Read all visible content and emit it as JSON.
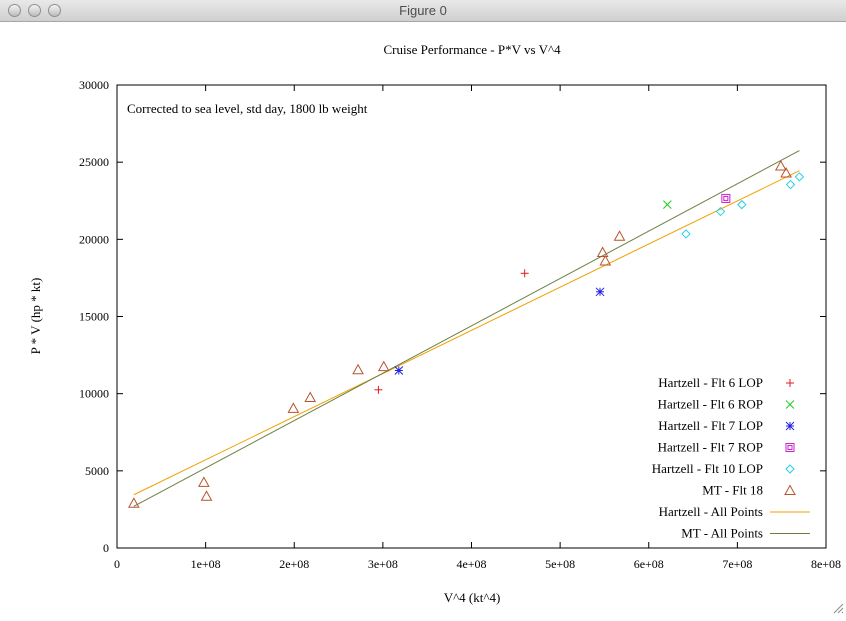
{
  "window": {
    "title": "Figure 0",
    "buttons": [
      "close",
      "minimize",
      "zoom"
    ]
  },
  "chart_data": {
    "type": "scatter",
    "title": "Cruise Performance - P*V vs V^4",
    "annotation": "Corrected to sea level, std day, 1800 lb weight",
    "xlabel": "V^4 (kt^4)",
    "ylabel": "P * V (hp * kt)",
    "xlim": [
      0,
      800000000
    ],
    "ylim": [
      0,
      30000
    ],
    "xticks": [
      {
        "value": 0,
        "label": "0"
      },
      {
        "value": 100000000,
        "label": "1e+08"
      },
      {
        "value": 200000000,
        "label": "2e+08"
      },
      {
        "value": 300000000,
        "label": "3e+08"
      },
      {
        "value": 400000000,
        "label": "4e+08"
      },
      {
        "value": 500000000,
        "label": "5e+08"
      },
      {
        "value": 600000000,
        "label": "6e+08"
      },
      {
        "value": 700000000,
        "label": "7e+08"
      },
      {
        "value": 800000000,
        "label": "8e+08"
      }
    ],
    "yticks": [
      {
        "value": 0,
        "label": "0"
      },
      {
        "value": 5000,
        "label": "5000"
      },
      {
        "value": 10000,
        "label": "10000"
      },
      {
        "value": 15000,
        "label": "15000"
      },
      {
        "value": 20000,
        "label": "20000"
      },
      {
        "value": 25000,
        "label": "25000"
      },
      {
        "value": 30000,
        "label": "30000"
      }
    ],
    "grid": false,
    "legend_position": "bottom-right",
    "series": [
      {
        "name": "Hartzell - Flt 6 LOP",
        "kind": "points",
        "marker": "plus",
        "color": "#e8191b",
        "points": [
          [
            295000000,
            10250
          ],
          [
            460000000,
            17800
          ]
        ]
      },
      {
        "name": "Hartzell - Flt 6 ROP",
        "kind": "points",
        "marker": "cross",
        "color": "#22cc22",
        "points": [
          [
            621000000,
            22250
          ]
        ]
      },
      {
        "name": "Hartzell - Flt 7 LOP",
        "kind": "points",
        "marker": "star",
        "color": "#2020e0",
        "points": [
          [
            318000000,
            11500
          ],
          [
            545000000,
            16600
          ]
        ]
      },
      {
        "name": "Hartzell - Flt 7 ROP",
        "kind": "points",
        "marker": "box",
        "color": "#cc22cc",
        "points": [
          [
            687000000,
            22650
          ]
        ]
      },
      {
        "name": "Hartzell - Flt 10 LOP",
        "kind": "points",
        "marker": "diamond",
        "color": "#22d0e8",
        "points": [
          [
            642000000,
            20350
          ],
          [
            681000000,
            21800
          ],
          [
            705000000,
            22250
          ],
          [
            760000000,
            23550
          ],
          [
            770000000,
            24050
          ]
        ]
      },
      {
        "name": "MT - Flt 18",
        "kind": "points",
        "marker": "triangle",
        "color": "#b8542a",
        "points": [
          [
            19000000,
            2900
          ],
          [
            98000000,
            4250
          ],
          [
            101000000,
            3350
          ],
          [
            199000000,
            9050
          ],
          [
            218000000,
            9750
          ],
          [
            272000000,
            11550
          ],
          [
            301000000,
            11750
          ],
          [
            548000000,
            19150
          ],
          [
            551000000,
            18600
          ],
          [
            567000000,
            20200
          ],
          [
            749000000,
            24750
          ],
          [
            755000000,
            24300
          ]
        ]
      },
      {
        "name": "Hartzell - All Points",
        "kind": "line",
        "color": "#f0a000",
        "points": [
          [
            19000000,
            3450
          ],
          [
            770000000,
            24450
          ]
        ]
      },
      {
        "name": "MT - All Points",
        "kind": "line",
        "color": "#6b8040",
        "points": [
          [
            19000000,
            2700
          ],
          [
            770000000,
            25750
          ]
        ]
      }
    ]
  }
}
